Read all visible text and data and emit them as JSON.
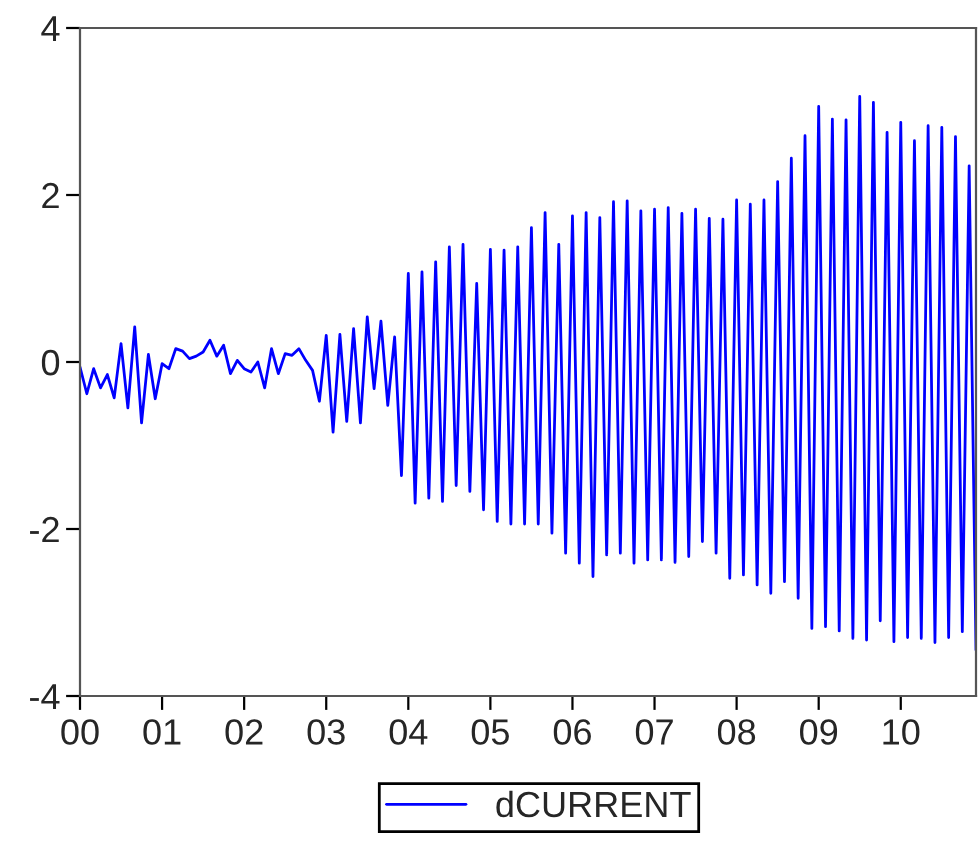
{
  "chart_data": {
    "type": "line",
    "x": [
      "2000-01",
      "2000-02",
      "2000-03",
      "2000-04",
      "2000-05",
      "2000-06",
      "2000-07",
      "2000-08",
      "2000-09",
      "2000-10",
      "2000-11",
      "2000-12",
      "2001-01",
      "2001-02",
      "2001-03",
      "2001-04",
      "2001-05",
      "2001-06",
      "2001-07",
      "2001-08",
      "2001-09",
      "2001-10",
      "2001-11",
      "2001-12",
      "2002-01",
      "2002-02",
      "2002-03",
      "2002-04",
      "2002-05",
      "2002-06",
      "2002-07",
      "2002-08",
      "2002-09",
      "2002-10",
      "2002-11",
      "2002-12",
      "2003-01",
      "2003-02",
      "2003-03",
      "2003-04",
      "2003-05",
      "2003-06",
      "2003-07",
      "2003-08",
      "2003-09",
      "2003-10",
      "2003-11",
      "2003-12",
      "2004-01",
      "2004-02",
      "2004-03",
      "2004-04",
      "2004-05",
      "2004-06",
      "2004-07",
      "2004-08",
      "2004-09",
      "2004-10",
      "2004-11",
      "2004-12",
      "2005-01",
      "2005-02",
      "2005-03",
      "2005-04",
      "2005-05",
      "2005-06",
      "2005-07",
      "2005-08",
      "2005-09",
      "2005-10",
      "2005-11",
      "2005-12",
      "2006-01",
      "2006-02",
      "2006-03",
      "2006-04",
      "2006-05",
      "2006-06",
      "2006-07",
      "2006-08",
      "2006-09",
      "2006-10",
      "2006-11",
      "2006-12",
      "2007-01",
      "2007-02",
      "2007-03",
      "2007-04",
      "2007-05",
      "2007-06",
      "2007-07",
      "2007-08",
      "2007-09",
      "2007-10",
      "2007-11",
      "2007-12",
      "2008-01",
      "2008-02",
      "2008-03",
      "2008-04",
      "2008-05",
      "2008-06",
      "2008-07",
      "2008-08",
      "2008-09",
      "2008-10",
      "2008-11",
      "2008-12",
      "2009-01",
      "2009-02",
      "2009-03",
      "2009-04",
      "2009-05",
      "2009-06",
      "2009-07",
      "2009-08",
      "2009-09",
      "2009-10",
      "2009-11",
      "2009-12",
      "2010-01",
      "2010-02",
      "2010-03",
      "2010-04",
      "2010-05",
      "2010-06",
      "2010-07",
      "2010-08",
      "2010-09",
      "2010-10",
      "2010-11",
      "2010-12"
    ],
    "series": [
      {
        "name": "dCURRENT",
        "color": "#0000ff",
        "values": [
          -0.06,
          -0.38,
          -0.08,
          -0.31,
          -0.15,
          -0.43,
          0.22,
          -0.55,
          0.42,
          -0.73,
          0.09,
          -0.44,
          -0.02,
          -0.08,
          0.16,
          0.13,
          0.04,
          0.07,
          0.12,
          0.26,
          0.07,
          0.2,
          -0.14,
          0.02,
          -0.08,
          -0.12,
          0.0,
          -0.31,
          0.16,
          -0.14,
          0.1,
          0.08,
          0.16,
          0.02,
          -0.1,
          -0.47,
          0.32,
          -0.84,
          0.33,
          -0.71,
          0.4,
          -0.73,
          0.54,
          -0.32,
          0.49,
          -0.52,
          0.3,
          -1.36,
          1.06,
          -1.69,
          1.08,
          -1.63,
          1.2,
          -1.67,
          1.38,
          -1.48,
          1.41,
          -1.55,
          0.94,
          -1.77,
          1.35,
          -1.91,
          1.34,
          -1.94,
          1.38,
          -1.94,
          1.61,
          -1.94,
          1.79,
          -2.05,
          1.41,
          -2.29,
          1.75,
          -2.41,
          1.79,
          -2.57,
          1.73,
          -2.31,
          1.92,
          -2.29,
          1.93,
          -2.41,
          1.81,
          -2.37,
          1.83,
          -2.37,
          1.85,
          -2.4,
          1.78,
          -2.33,
          1.83,
          -2.15,
          1.72,
          -2.29,
          1.71,
          -2.59,
          1.94,
          -2.55,
          1.89,
          -2.67,
          1.94,
          -2.77,
          2.16,
          -2.63,
          2.44,
          -2.83,
          2.71,
          -3.19,
          3.06,
          -3.17,
          2.91,
          -3.22,
          2.9,
          -3.31,
          3.18,
          -3.33,
          3.11,
          -3.1,
          2.75,
          -3.35,
          2.87,
          -3.3,
          2.65,
          -3.31,
          2.83,
          -3.36,
          2.81,
          -3.3,
          2.7,
          -3.23,
          2.35,
          -3.45
        ]
      }
    ],
    "xlim": [
      "2000-01",
      "2010-12"
    ],
    "xticks": [
      {
        "value": "2000-01",
        "label": "00"
      },
      {
        "value": "2001-01",
        "label": "01"
      },
      {
        "value": "2002-01",
        "label": "02"
      },
      {
        "value": "2003-01",
        "label": "03"
      },
      {
        "value": "2004-01",
        "label": "04"
      },
      {
        "value": "2005-01",
        "label": "05"
      },
      {
        "value": "2006-01",
        "label": "06"
      },
      {
        "value": "2007-01",
        "label": "07"
      },
      {
        "value": "2008-01",
        "label": "08"
      },
      {
        "value": "2009-01",
        "label": "09"
      },
      {
        "value": "2010-01",
        "label": "10"
      }
    ],
    "ylim": [
      -4,
      4
    ],
    "yticks": [
      -4,
      -2,
      0,
      2,
      4
    ],
    "grid": false,
    "legend": "bottom",
    "line_style": "solid"
  }
}
